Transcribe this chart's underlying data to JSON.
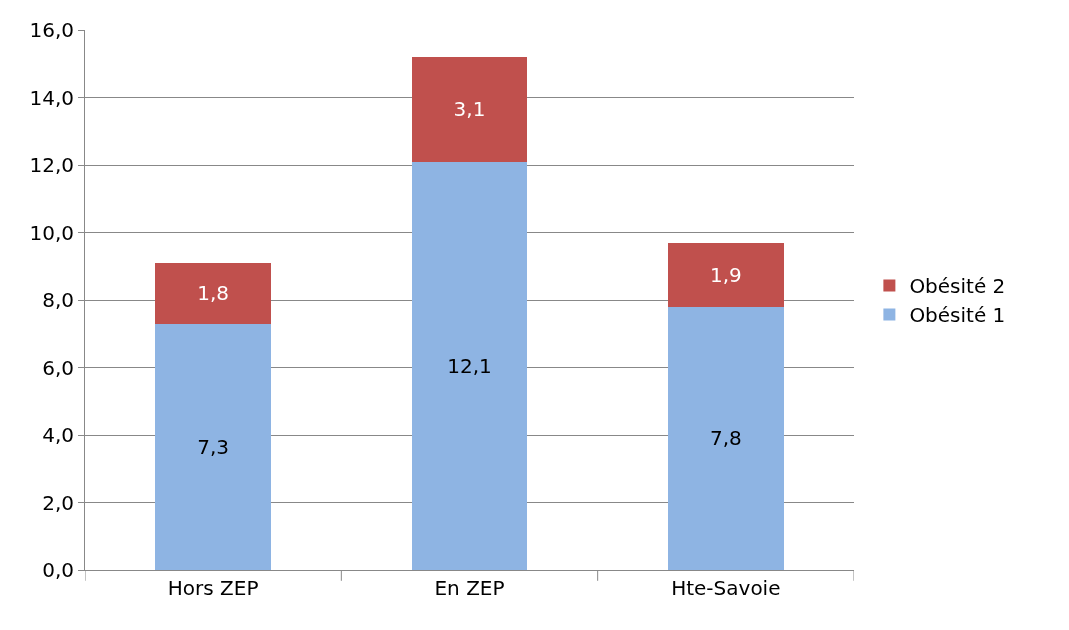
{
  "chart_data": {
    "type": "bar",
    "stacked": true,
    "categories": [
      "Hors ZEP",
      "En ZEP",
      "Hte-Savoie"
    ],
    "series": [
      {
        "name": "Obésité 1",
        "color": "#8eb4e3",
        "values": [
          7.3,
          12.1,
          7.8
        ],
        "value_labels": [
          "7,3",
          "12,1",
          "7,8"
        ]
      },
      {
        "name": "Obésité 2",
        "color": "#c0504d",
        "values": [
          1.8,
          3.1,
          1.9
        ],
        "value_labels": [
          "1,8",
          "3,1",
          "1,9"
        ]
      }
    ],
    "ylim": [
      0,
      16
    ],
    "yticks": [
      {
        "value": 0,
        "label": "0,0"
      },
      {
        "value": 2,
        "label": "2,0"
      },
      {
        "value": 4,
        "label": "4,0"
      },
      {
        "value": 6,
        "label": "6,0"
      },
      {
        "value": 8,
        "label": "8,0"
      },
      {
        "value": 10,
        "label": "10,0"
      },
      {
        "value": 12,
        "label": "12,0"
      },
      {
        "value": 14,
        "label": "14,0"
      },
      {
        "value": 16,
        "label": "16,0"
      }
    ],
    "grid": "y",
    "legend": "right"
  }
}
